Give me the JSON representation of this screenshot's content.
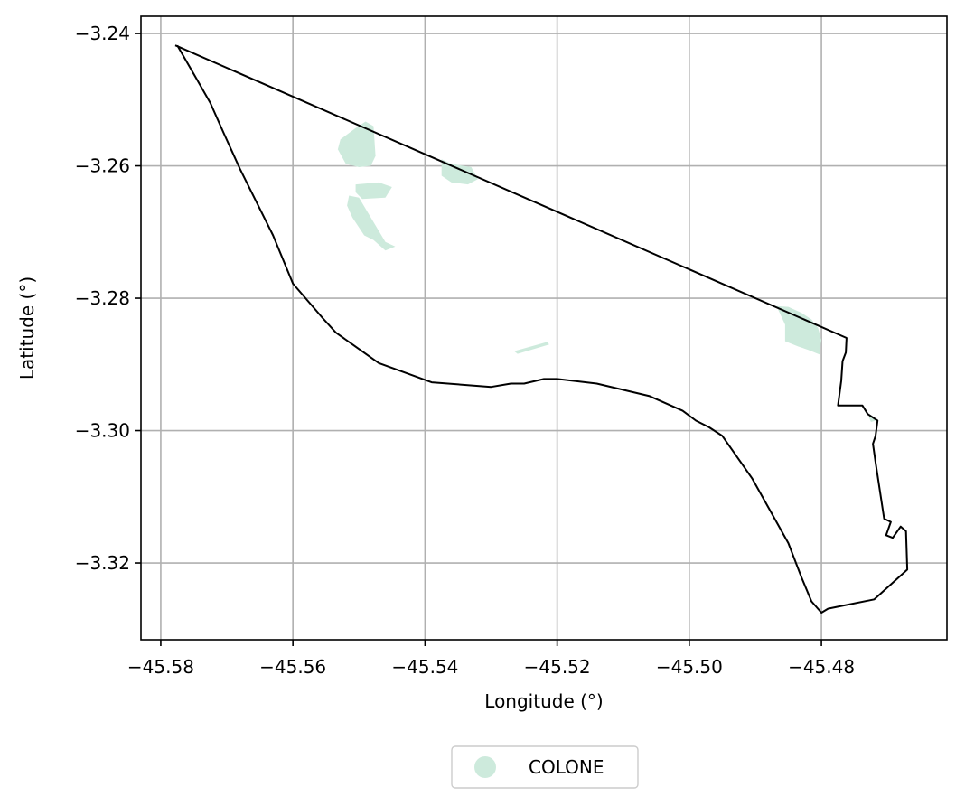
{
  "colors": {
    "grid": "#b0b0b0",
    "boundary": "#000000",
    "landcover": "#cdeadc",
    "background": "#ffffff"
  },
  "chart_data": {
    "type": "map",
    "xlabel": "Longitude (°)",
    "ylabel": "Latitude (°)",
    "xlim": [
      -45.583,
      -45.461
    ],
    "ylim": [
      -3.3316,
      -3.2374
    ],
    "grid": true,
    "x_ticks": [
      -45.58,
      -45.56,
      -45.54,
      -45.52,
      -45.5,
      -45.48
    ],
    "x_tick_labels": [
      "−45.58",
      "−45.56",
      "−45.54",
      "−45.52",
      "−45.50",
      "−45.48"
    ],
    "y_ticks": [
      -3.24,
      -3.26,
      -3.28,
      -3.3,
      -3.32
    ],
    "y_tick_labels": [
      "−3.24",
      "−3.26",
      "−3.28",
      "−3.30",
      "−3.32"
    ],
    "legend": {
      "placement": "bottom-center",
      "entries": [
        {
          "label": "COLONE",
          "color": "#cdeadc",
          "marker": "circle"
        }
      ]
    },
    "boundary": [
      [
        -45.5775,
        -3.2418
      ],
      [
        -45.5745,
        -3.247
      ],
      [
        -45.5725,
        -3.2505
      ],
      [
        -45.5705,
        -3.255
      ],
      [
        -45.568,
        -3.2605
      ],
      [
        -45.563,
        -3.2705
      ],
      [
        -45.56,
        -3.2778
      ],
      [
        -45.5555,
        -3.283
      ],
      [
        -45.5535,
        -3.2852
      ],
      [
        -45.547,
        -3.2898
      ],
      [
        -45.539,
        -3.2927
      ],
      [
        -45.53,
        -3.2934
      ],
      [
        -45.527,
        -3.2929
      ],
      [
        -45.525,
        -3.2929
      ],
      [
        -45.522,
        -3.2922
      ],
      [
        -45.52,
        -3.2922
      ],
      [
        -45.514,
        -3.2929
      ],
      [
        -45.506,
        -3.2948
      ],
      [
        -45.501,
        -3.297
      ],
      [
        -45.499,
        -3.2985
      ],
      [
        -45.497,
        -3.2995
      ],
      [
        -45.495,
        -3.3008
      ],
      [
        -45.4905,
        -3.3072
      ],
      [
        -45.485,
        -3.317
      ],
      [
        -45.483,
        -3.3222
      ],
      [
        -45.4815,
        -3.3258
      ],
      [
        -45.48,
        -3.3275
      ],
      [
        -45.479,
        -3.3269
      ],
      [
        -45.477,
        -3.3265
      ],
      [
        -45.472,
        -3.3255
      ],
      [
        -45.467,
        -3.321
      ],
      [
        -45.4672,
        -3.3152
      ],
      [
        -45.468,
        -3.3145
      ],
      [
        -45.4692,
        -3.3162
      ],
      [
        -45.4702,
        -3.3158
      ],
      [
        -45.4695,
        -3.3138
      ],
      [
        -45.4705,
        -3.3133
      ],
      [
        -45.4718,
        -3.3048
      ],
      [
        -45.4722,
        -3.302
      ],
      [
        -45.4718,
        -3.3008
      ],
      [
        -45.4715,
        -3.2985
      ],
      [
        -45.473,
        -3.2975
      ],
      [
        -45.4738,
        -3.2962
      ],
      [
        -45.4755,
        -3.2962
      ],
      [
        -45.4775,
        -3.2962
      ],
      [
        -45.477,
        -3.2925
      ],
      [
        -45.4768,
        -3.2895
      ],
      [
        -45.4763,
        -3.2882
      ],
      [
        -45.4762,
        -3.286
      ],
      [
        -45.5778,
        -3.2418
      ]
    ],
    "landcover_patches": [
      {
        "name": "patch-northwest-1",
        "polygon": [
          [
            -45.5505,
            -3.2543
          ],
          [
            -45.549,
            -3.2533
          ],
          [
            -45.5478,
            -3.254
          ],
          [
            -45.5475,
            -3.2585
          ],
          [
            -45.5482,
            -3.26
          ],
          [
            -45.55,
            -3.2602
          ],
          [
            -45.552,
            -3.2597
          ],
          [
            -45.5532,
            -3.2575
          ],
          [
            -45.5528,
            -3.256
          ]
        ]
      },
      {
        "name": "patch-northwest-2",
        "polygon": [
          [
            -45.5505,
            -3.2628
          ],
          [
            -45.547,
            -3.2625
          ],
          [
            -45.545,
            -3.2632
          ],
          [
            -45.546,
            -3.2648
          ],
          [
            -45.5495,
            -3.265
          ],
          [
            -45.5505,
            -3.264
          ]
        ]
      },
      {
        "name": "patch-northwest-3",
        "polygon": [
          [
            -45.5515,
            -3.2645
          ],
          [
            -45.55,
            -3.2648
          ],
          [
            -45.5475,
            -3.269
          ],
          [
            -45.546,
            -3.2715
          ],
          [
            -45.5445,
            -3.2722
          ],
          [
            -45.546,
            -3.2728
          ],
          [
            -45.5478,
            -3.2712
          ],
          [
            -45.5492,
            -3.2705
          ],
          [
            -45.551,
            -3.2678
          ],
          [
            -45.5518,
            -3.266
          ]
        ]
      },
      {
        "name": "patch-central-north",
        "polygon": [
          [
            -45.5375,
            -3.259
          ],
          [
            -45.536,
            -3.2597
          ],
          [
            -45.533,
            -3.2602
          ],
          [
            -45.532,
            -3.262
          ],
          [
            -45.5335,
            -3.2628
          ],
          [
            -45.536,
            -3.2625
          ],
          [
            -45.5375,
            -3.2615
          ]
        ]
      },
      {
        "name": "patch-central-sliver",
        "polygon": [
          [
            -45.5265,
            -3.288
          ],
          [
            -45.5215,
            -3.2866
          ],
          [
            -45.5212,
            -3.287
          ],
          [
            -45.526,
            -3.2884
          ]
        ]
      },
      {
        "name": "patch-east",
        "polygon": [
          [
            -45.4868,
            -3.2812
          ],
          [
            -45.4855,
            -3.284
          ],
          [
            -45.4855,
            -3.2865
          ],
          [
            -45.4835,
            -3.2873
          ],
          [
            -45.482,
            -3.2878
          ],
          [
            -45.4803,
            -3.2885
          ],
          [
            -45.48,
            -3.2863
          ],
          [
            -45.4805,
            -3.2845
          ],
          [
            -45.4815,
            -3.2832
          ],
          [
            -45.483,
            -3.2822
          ],
          [
            -45.485,
            -3.2813
          ]
        ]
      },
      {
        "name": "patch-east-small",
        "polygon": [
          [
            -45.4722,
            -3.2978
          ],
          [
            -45.4718,
            -3.2985
          ],
          [
            -45.4725,
            -3.2987
          ],
          [
            -45.4728,
            -3.298
          ]
        ]
      }
    ]
  }
}
